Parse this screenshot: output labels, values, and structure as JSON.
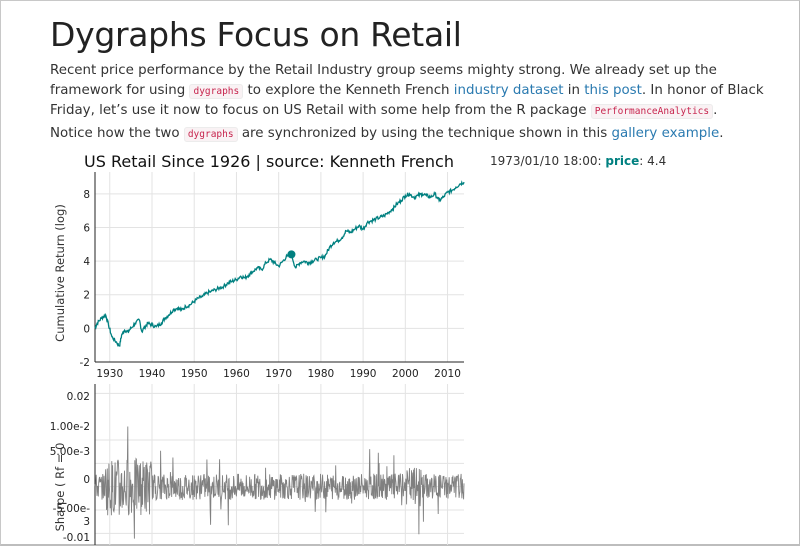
{
  "page": {
    "title": "Dygraphs Focus on Retail",
    "paragraph1": {
      "t1": "Recent price performance by the Retail Industry group seems mighty strong. We already set up the framework for using ",
      "code1": "dygraphs",
      "t2": " to explore the Kenneth French ",
      "link1": "industry dataset",
      "t3": " in ",
      "link2": "this post",
      "t4": ". In honor of Black Friday, let’s use it now to focus on US Retail with some help from the R package ",
      "code2": "PerformanceAnalytics",
      "t5": "."
    },
    "paragraph2": {
      "t1": "Notice how the two ",
      "code1": "dygraphs",
      "t2": " are synchronized by using the technique shown in this ",
      "link1": "gallery example",
      "t3": "."
    }
  },
  "legend": {
    "date": "1973/01/10 18:00: ",
    "series": "price",
    "sep": ": ",
    "value": "4.4"
  },
  "colors": {
    "price_series": "#008080",
    "sharpe_series": "#808080",
    "grid": "#e3e3e3",
    "link": "#2a7ab0",
    "code": "#c7254e"
  },
  "chart_data": [
    {
      "type": "line",
      "title": "US Retail Since 1926 | source: Kenneth French",
      "xlabel": "",
      "ylabel": "Cumulative Return (log)",
      "x_ticks": [
        1930,
        1940,
        1950,
        1960,
        1970,
        1980,
        1990,
        2000,
        2010
      ],
      "y_ticks": [
        -2,
        0,
        2,
        4,
        6,
        8
      ],
      "xlim": [
        1926.5,
        2013.9
      ],
      "ylim": [
        -2,
        9.3
      ],
      "grid": true,
      "highlight": {
        "x": 1973.03,
        "y": 4.4
      },
      "series": [
        {
          "name": "price",
          "x": [
            1926.5,
            1927,
            1928,
            1929,
            1929.7,
            1930.5,
            1931.5,
            1932.3,
            1932.8,
            1933.5,
            1934.3,
            1935,
            1936,
            1937,
            1937.6,
            1938.3,
            1939,
            1940,
            1941,
            1942.2,
            1943,
            1944,
            1945,
            1946,
            1947,
            1948,
            1949,
            1950,
            1951,
            1952,
            1953,
            1954,
            1955,
            1956,
            1957,
            1958,
            1959,
            1960,
            1961,
            1962,
            1963,
            1964,
            1965,
            1966,
            1967,
            1968,
            1969,
            1970,
            1971,
            1972,
            1973,
            1974,
            1975,
            1976,
            1977,
            1978,
            1979,
            1980,
            1981,
            1982,
            1983,
            1984,
            1985,
            1986,
            1987,
            1988,
            1989,
            1990,
            1991,
            1992,
            1993,
            1994,
            1995,
            1996,
            1997,
            1998,
            1999,
            2000,
            2001,
            2002,
            2003,
            2004,
            2005,
            2006,
            2007,
            2008,
            2009,
            2010,
            2011,
            2012,
            2013,
            2013.9
          ],
          "values": [
            0,
            0.3,
            0.6,
            0.8,
            0.2,
            -0.5,
            -0.8,
            -1.05,
            -0.4,
            -0.1,
            -0.2,
            0,
            0.3,
            0.5,
            -0.2,
            0.1,
            0.3,
            0.2,
            0.1,
            0.3,
            0.6,
            0.8,
            1.1,
            1.2,
            1.1,
            1.3,
            1.4,
            1.6,
            1.8,
            1.9,
            2.1,
            2.2,
            2.3,
            2.4,
            2.5,
            2.7,
            2.8,
            2.9,
            3.1,
            3.0,
            3.2,
            3.4,
            3.6,
            3.5,
            3.9,
            4.1,
            3.9,
            3.7,
            4.0,
            4.3,
            4.4,
            3.6,
            3.9,
            4.0,
            3.9,
            4.0,
            4.1,
            4.2,
            4.3,
            4.8,
            5.1,
            5.2,
            5.4,
            5.8,
            5.7,
            5.9,
            6.1,
            5.9,
            6.3,
            6.4,
            6.5,
            6.6,
            6.7,
            6.9,
            7.1,
            7.4,
            7.6,
            7.9,
            8.0,
            7.8,
            7.9,
            8.0,
            7.9,
            7.8,
            8.0,
            7.6,
            7.8,
            8.1,
            8.2,
            8.4,
            8.6,
            8.7
          ]
        }
      ]
    },
    {
      "type": "line",
      "title": "",
      "xlabel": "",
      "ylabel": "Sharpe ( Rf = 0",
      "y_ticks": [
        "0.02",
        "1.00e-2",
        "5.00e-3",
        "0",
        "-5.00e-",
        "3",
        "-0.01"
      ],
      "ylim": [
        -0.0125,
        0.022
      ],
      "xlim": [
        1926.5,
        2013.9
      ],
      "grid": true,
      "series": [
        {
          "name": "sharpe",
          "x_start": 1926.5,
          "x_end": 2013.9,
          "value_range": [
            -0.012,
            0.021
          ]
        }
      ]
    }
  ]
}
